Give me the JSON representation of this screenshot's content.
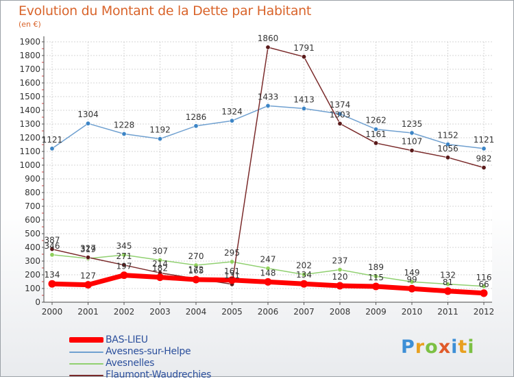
{
  "title": "Evolution du Montant de la Dette par Habitant",
  "unit": "(en €)",
  "brand": "Proxiti",
  "chart_data": {
    "type": "line",
    "x": [
      "2000",
      "2001",
      "2002",
      "2003",
      "2004",
      "2005",
      "2006",
      "2007",
      "2008",
      "2009",
      "2010",
      "2011",
      "2012"
    ],
    "ylim": [
      0,
      1900
    ],
    "yticks": [
      0,
      100,
      200,
      300,
      400,
      500,
      600,
      700,
      800,
      900,
      1000,
      1100,
      1200,
      1300,
      1400,
      1500,
      1600,
      1700,
      1800,
      1900
    ],
    "grid": true,
    "legend_position": "bottom-left",
    "series": [
      {
        "name": "BAS-LIEU",
        "color": "#ff0000",
        "values": [
          134,
          127,
          197,
          182,
          165,
          161,
          148,
          134,
          120,
          115,
          99,
          81,
          66
        ],
        "labels": [
          "134",
          "127",
          "197",
          "182",
          "165",
          "161",
          "148",
          "134",
          "120",
          "115",
          "99",
          "81",
          "66"
        ]
      },
      {
        "name": "Avesnes-sur-Helpe",
        "color": "#6fa0d0",
        "values": [
          1121,
          1304,
          1228,
          1192,
          1286,
          1324,
          1433,
          1413,
          1374,
          1262,
          1235,
          1152,
          1121
        ],
        "labels": [
          "1121",
          "1304",
          "1228",
          "1192",
          "1286",
          "1324",
          "1433",
          "1413",
          "1374",
          "1262",
          "1235",
          "1152",
          "1121"
        ]
      },
      {
        "name": "Avesnelles",
        "color": "#90d070",
        "values": [
          346,
          319,
          345,
          307,
          270,
          295,
          247,
          202,
          237,
          189,
          149,
          132,
          116
        ],
        "labels": [
          "346",
          "319",
          "345",
          "307",
          "270",
          "295",
          "247",
          "202",
          "237",
          "189",
          "149",
          "132",
          "116"
        ]
      },
      {
        "name": "Flaumont-Waudrechies",
        "color": "#7a2a2a",
        "values": [
          387,
          327,
          271,
          214,
          172,
          131,
          1860,
          1791,
          1303,
          1161,
          1107,
          1056,
          982
        ],
        "labels": [
          "387",
          "327",
          "271",
          "214",
          "172",
          "131",
          "1860",
          "1791",
          "1303",
          "1161",
          "1107",
          "1056",
          "982"
        ]
      }
    ]
  }
}
